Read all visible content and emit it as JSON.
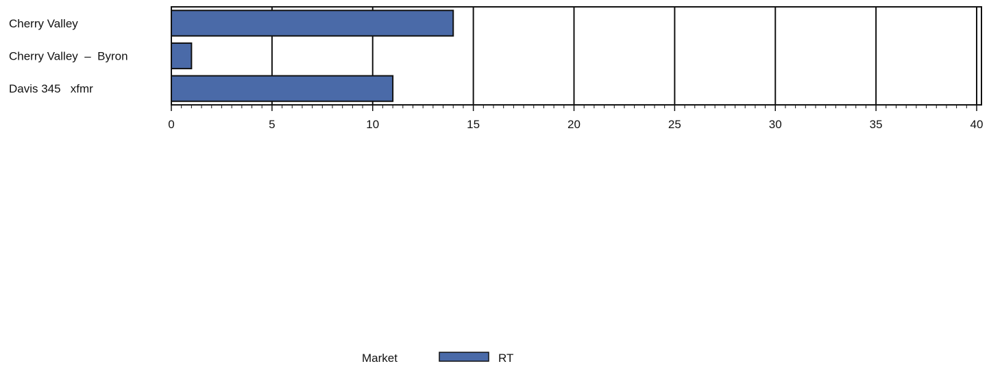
{
  "chart_data": {
    "type": "bar",
    "orientation": "horizontal",
    "categories": [
      "Cherry Valley",
      "Cherry Valley  –  Byron",
      "Davis 345   xfmr"
    ],
    "series": [
      {
        "name": "RT",
        "values": [
          14,
          1,
          11
        ],
        "color": "#4a6aa8"
      }
    ],
    "xlim": [
      0,
      40
    ],
    "xticks": [
      "0",
      "5",
      "10",
      "15",
      "20",
      "25",
      "30",
      "35",
      "40"
    ],
    "grid": "vertical major gridlines",
    "legend": {
      "position": "bottom-center",
      "title": "Market",
      "entries": [
        "RT"
      ]
    }
  }
}
